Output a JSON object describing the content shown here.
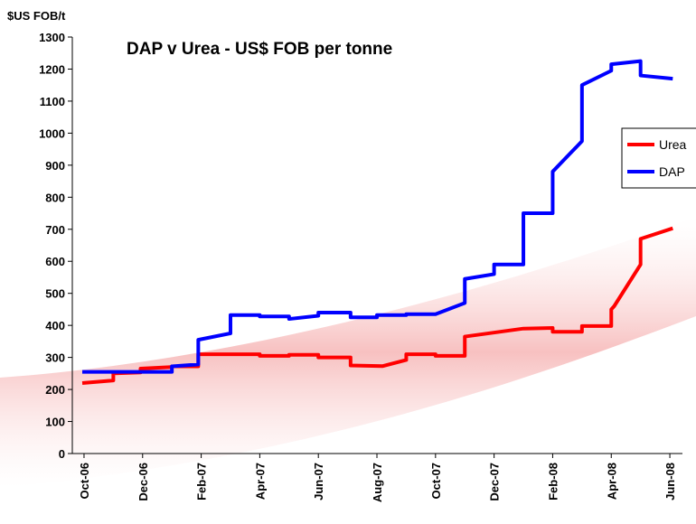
{
  "chart_data": {
    "type": "line",
    "title": "DAP v Urea - US$ FOB per tonne",
    "y_label": "$US FOB/t",
    "xlim": [
      -0.4,
      20.43
    ],
    "ylim": [
      0,
      1300
    ],
    "xticks": [
      {
        "value": 0,
        "label": "Oct-06"
      },
      {
        "value": 2,
        "label": "Dec-06"
      },
      {
        "value": 4,
        "label": "Feb-07"
      },
      {
        "value": 6,
        "label": "Apr-07"
      },
      {
        "value": 8,
        "label": "Jun-07"
      },
      {
        "value": 10,
        "label": "Aug-07"
      },
      {
        "value": 12,
        "label": "Oct-07"
      },
      {
        "value": 14,
        "label": "Dec-07"
      },
      {
        "value": 16,
        "label": "Feb-08"
      },
      {
        "value": 18,
        "label": "Apr-08"
      },
      {
        "value": 20,
        "label": "Jun-08"
      }
    ],
    "yticks": [
      0,
      100,
      200,
      300,
      400,
      500,
      600,
      700,
      800,
      900,
      1000,
      1100,
      1200,
      1300
    ],
    "legend": "right",
    "series": [
      {
        "name": "Urea",
        "color": "#ff0000",
        "x": [
          -0.06,
          1.0,
          1.0,
          1.93,
          1.93,
          3.0,
          3.0,
          3.9,
          3.9,
          6.0,
          6.0,
          7.0,
          7.0,
          8.0,
          8.0,
          9.1,
          9.1,
          10.2,
          11.0,
          11.0,
          12.0,
          12.0,
          13.0,
          13.0,
          15.0,
          16.0,
          16.0,
          17.0,
          17.0,
          18.0,
          18.0,
          18.1,
          19.0,
          19.0,
          20.1
        ],
        "values": [
          220,
          228,
          250,
          253,
          265,
          270,
          272,
          272,
          310,
          310,
          305,
          305,
          308,
          308,
          300,
          300,
          275,
          273,
          292,
          310,
          310,
          305,
          305,
          365,
          390,
          392,
          380,
          380,
          398,
          398,
          450,
          460,
          590,
          670,
          703
        ]
      },
      {
        "name": "DAP",
        "color": "#0000ff",
        "x": [
          -0.06,
          3.0,
          3.0,
          3.9,
          3.9,
          5.0,
          5.0,
          6.0,
          6.0,
          7.0,
          7.0,
          8.0,
          8.0,
          9.1,
          9.1,
          10.0,
          10.0,
          11.0,
          11.0,
          12.0,
          13.0,
          13.0,
          14.0,
          14.0,
          15.0,
          15.0,
          16.0,
          16.0,
          17.0,
          17.0,
          18.0,
          18.0,
          19.0,
          19.0,
          20.1
        ],
        "values": [
          255,
          255,
          272,
          278,
          355,
          375,
          432,
          432,
          428,
          428,
          420,
          430,
          440,
          440,
          425,
          425,
          432,
          432,
          435,
          435,
          470,
          545,
          560,
          590,
          590,
          750,
          750,
          880,
          975,
          1150,
          1195,
          1215,
          1225,
          1180,
          1170
        ]
      }
    ]
  }
}
